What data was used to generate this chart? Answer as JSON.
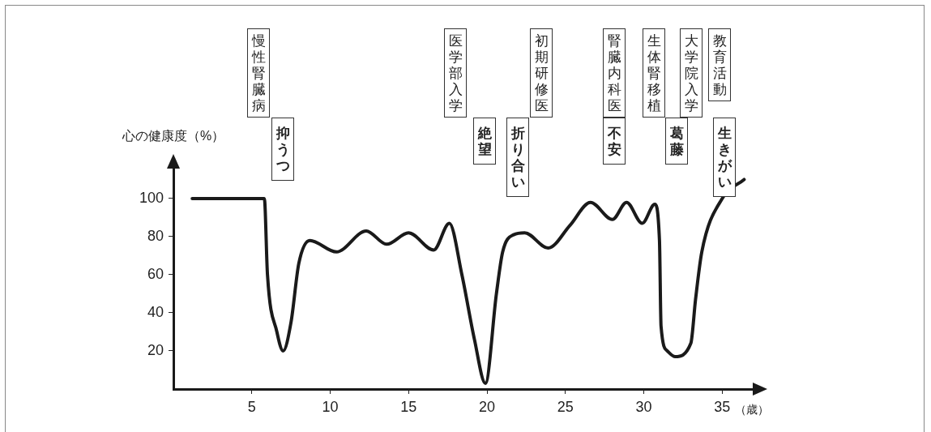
{
  "chart_data": {
    "type": "line",
    "ylabel": "心の健康度（%）",
    "xlabel": "（歳）",
    "xlim": [
      0,
      37
    ],
    "xticks": [
      5,
      10,
      15,
      20,
      25,
      30,
      35
    ],
    "ylim": [
      0,
      117
    ],
    "yticks": [
      20,
      40,
      60,
      80,
      100
    ],
    "marker": "none",
    "line_style": "solid",
    "legend": false,
    "grid": false,
    "series": [
      {
        "color": "#1a1a1a",
        "x": [
          1.2,
          5.8,
          6.0,
          6.6,
          7.0,
          7.5,
          8.0,
          8.7,
          10.4,
          12.3,
          13.6,
          15.0,
          16.6,
          17.6,
          18.4,
          19.2,
          19.9,
          20.6,
          21.0,
          21.7,
          22.4,
          23.9,
          25.3,
          26.6,
          28.0,
          28.9,
          29.9,
          30.7,
          31.0,
          31.1,
          31.5,
          32.0,
          33.0,
          33.3,
          33.7,
          35.0,
          36.4
        ],
        "values": [
          100,
          100,
          60,
          30,
          20,
          35,
          66,
          78,
          72,
          83,
          76,
          82,
          73,
          87,
          60,
          26,
          3,
          50,
          72,
          81,
          82,
          74,
          86,
          98,
          89,
          98,
          87,
          97,
          78,
          33,
          20,
          17,
          24,
          47,
          72,
          100,
          110
        ]
      }
    ],
    "annotations": [
      "慢性腎臓病",
      "医学部入学",
      "初期研修医",
      "腎臓内科医",
      "生体腎移植",
      "大学院入学",
      "教育活動",
      "抑うつ",
      "絶望",
      "折り合い",
      "不安",
      "葛藤",
      "生きがい"
    ]
  }
}
